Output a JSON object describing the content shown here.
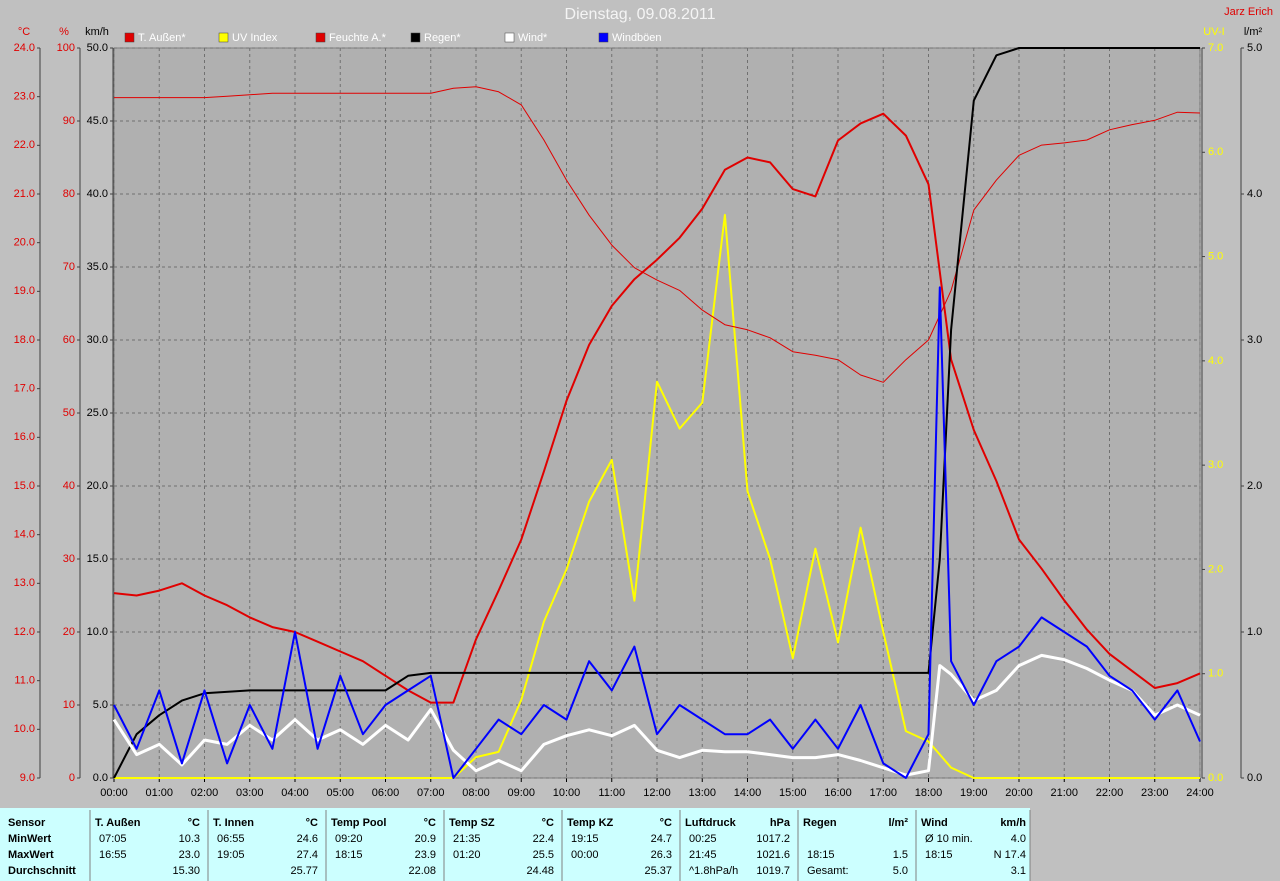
{
  "chart_data": {
    "type": "line",
    "title": "Dienstag, 09.08.2011",
    "author": "Jarz Erich",
    "xlim": [
      0,
      24
    ],
    "xticks": [
      {
        "value": 0,
        "label": "00:00"
      },
      {
        "value": 1,
        "label": "01:00"
      },
      {
        "value": 2,
        "label": "02:00"
      },
      {
        "value": 3,
        "label": "03:00"
      },
      {
        "value": 4,
        "label": "04:00"
      },
      {
        "value": 5,
        "label": "05:00"
      },
      {
        "value": 6,
        "label": "06:00"
      },
      {
        "value": 7,
        "label": "07:00"
      },
      {
        "value": 8,
        "label": "08:00"
      },
      {
        "value": 9,
        "label": "09:00"
      },
      {
        "value": 10,
        "label": "10:00"
      },
      {
        "value": 11,
        "label": "11:00"
      },
      {
        "value": 12,
        "label": "12:00"
      },
      {
        "value": 13,
        "label": "13:00"
      },
      {
        "value": 14,
        "label": "14:00"
      },
      {
        "value": 15,
        "label": "15:00"
      },
      {
        "value": 16,
        "label": "16:00"
      },
      {
        "value": 17,
        "label": "17:00"
      },
      {
        "value": 18,
        "label": "18:00"
      },
      {
        "value": 19,
        "label": "19:00"
      },
      {
        "value": 20,
        "label": "20:00"
      },
      {
        "value": 21,
        "label": "21:00"
      },
      {
        "value": 22,
        "label": "22:00"
      },
      {
        "value": 23,
        "label": "23:00"
      },
      {
        "value": 24,
        "label": "24:00"
      }
    ],
    "grid": true,
    "axes": [
      {
        "label": "°C",
        "side": "left",
        "color": "#e00000",
        "lim": [
          9,
          24
        ],
        "ticks": [
          {
            "value": 9,
            "label": "9.0"
          },
          {
            "value": 10,
            "label": "10.0"
          },
          {
            "value": 11,
            "label": "11.0"
          },
          {
            "value": 12,
            "label": "12.0"
          },
          {
            "value": 13,
            "label": "13.0"
          },
          {
            "value": 14,
            "label": "14.0"
          },
          {
            "value": 15,
            "label": "15.0"
          },
          {
            "value": 16,
            "label": "16.0"
          },
          {
            "value": 17,
            "label": "17.0"
          },
          {
            "value": 18,
            "label": "18.0"
          },
          {
            "value": 19,
            "label": "19.0"
          },
          {
            "value": 20,
            "label": "20.0"
          },
          {
            "value": 21,
            "label": "21.0"
          },
          {
            "value": 22,
            "label": "22.0"
          },
          {
            "value": 23,
            "label": "23.0"
          },
          {
            "value": 24,
            "label": "24.0"
          }
        ]
      },
      {
        "label": "%",
        "side": "left",
        "color": "#e00000",
        "lim": [
          0,
          100
        ],
        "ticks": [
          0,
          10,
          20,
          30,
          40,
          50,
          60,
          70,
          80,
          90,
          100
        ]
      },
      {
        "label": "km/h",
        "side": "left",
        "color": "#000000",
        "lim": [
          0,
          50
        ],
        "grid": true,
        "ticks": [
          {
            "value": 0,
            "label": "0.0"
          },
          {
            "value": 5,
            "label": "5.0"
          },
          {
            "value": 10,
            "label": "10.0"
          },
          {
            "value": 15,
            "label": "15.0"
          },
          {
            "value": 20,
            "label": "20.0"
          },
          {
            "value": 25,
            "label": "25.0"
          },
          {
            "value": 30,
            "label": "30.0"
          },
          {
            "value": 35,
            "label": "35.0"
          },
          {
            "value": 40,
            "label": "40.0"
          },
          {
            "value": 45,
            "label": "45.0"
          },
          {
            "value": 50,
            "label": "50.0"
          }
        ]
      },
      {
        "label": "UV-I",
        "side": "right",
        "color": "#ffff00",
        "lim": [
          0,
          7
        ],
        "ticks": [
          {
            "value": 0,
            "label": "0.0"
          },
          {
            "value": 1,
            "label": "1.0"
          },
          {
            "value": 2,
            "label": "2.0"
          },
          {
            "value": 3,
            "label": "3.0"
          },
          {
            "value": 4,
            "label": "4.0"
          },
          {
            "value": 5,
            "label": "5.0"
          },
          {
            "value": 6,
            "label": "6.0"
          },
          {
            "value": 7,
            "label": "7.0"
          }
        ]
      },
      {
        "label": "l/m²",
        "side": "right",
        "color": "#000000",
        "lim": [
          0,
          5
        ],
        "ticks": [
          {
            "value": 0,
            "label": "0.0"
          },
          {
            "value": 1,
            "label": "1.0"
          },
          {
            "value": 2,
            "label": "2.0"
          },
          {
            "value": 3,
            "label": "3.0"
          },
          {
            "value": 4,
            "label": "4.0"
          },
          {
            "value": 5,
            "label": "5.0"
          }
        ]
      }
    ],
    "series": [
      {
        "name": "T. Außen*",
        "color": "#e00000",
        "axis": "°C",
        "width": 2,
        "x": [
          0,
          0.5,
          1,
          1.5,
          2,
          2.5,
          3,
          3.5,
          4,
          4.5,
          5,
          5.5,
          6,
          6.5,
          7,
          7.5,
          8,
          8.5,
          9,
          9.5,
          10,
          10.5,
          11,
          11.5,
          12,
          12.5,
          13,
          13.5,
          14,
          14.5,
          15,
          15.5,
          16,
          16.5,
          17,
          17.5,
          18,
          18.5,
          19,
          19.5,
          20,
          20.5,
          21,
          21.5,
          22,
          22.5,
          23,
          23.5,
          24
        ],
        "values": [
          12.8,
          12.75,
          12.85,
          13.0,
          12.75,
          12.55,
          12.3,
          12.1,
          12.0,
          11.8,
          11.6,
          11.4,
          11.1,
          10.8,
          10.55,
          10.55,
          11.85,
          12.85,
          13.9,
          15.3,
          16.75,
          17.9,
          18.7,
          19.25,
          19.65,
          20.1,
          20.7,
          21.5,
          21.75,
          21.65,
          21.1,
          20.95,
          22.1,
          22.45,
          22.65,
          22.2,
          21.2,
          17.6,
          16.15,
          15.1,
          13.9,
          13.3,
          12.65,
          12.05,
          11.55,
          11.2,
          10.85,
          10.95,
          11.15
        ]
      },
      {
        "name": "UV Index",
        "color": "#ffff00",
        "axis": "UV-I",
        "width": 2,
        "x": [
          0,
          0.5,
          1,
          1.5,
          2,
          2.5,
          3,
          3.5,
          4,
          4.5,
          5,
          5.5,
          6,
          6.5,
          7,
          7.5,
          8,
          8.5,
          9,
          9.5,
          10,
          10.5,
          11,
          11.5,
          12,
          12.5,
          13,
          13.5,
          14,
          14.5,
          15,
          15.5,
          16,
          16.5,
          17,
          17.5,
          18,
          18.5,
          19,
          19.5,
          20,
          20.5,
          21,
          21.5,
          22,
          22.5,
          23,
          23.5,
          24
        ],
        "values": [
          0,
          0,
          0,
          0,
          0,
          0,
          0,
          0,
          0,
          0,
          0,
          0,
          0,
          0,
          0,
          0,
          0.2,
          0.25,
          0.75,
          1.5,
          2.0,
          2.65,
          3.05,
          1.7,
          3.8,
          3.35,
          3.6,
          5.4,
          2.75,
          2.1,
          1.15,
          2.2,
          1.3,
          2.4,
          1.4,
          0.45,
          0.35,
          0.1,
          0,
          0,
          0,
          0,
          0,
          0,
          0,
          0,
          0,
          0,
          0
        ]
      },
      {
        "name": "Feuchte A.*",
        "color": "#e00000",
        "axis": "%",
        "width": 1,
        "x": [
          0,
          0.5,
          1,
          1.5,
          2,
          2.5,
          3,
          3.5,
          4,
          4.5,
          5,
          5.5,
          6,
          6.5,
          7,
          7.5,
          8,
          8.5,
          9,
          9.5,
          10,
          10.5,
          11,
          11.5,
          12,
          12.5,
          13,
          13.5,
          14,
          14.5,
          15,
          15.5,
          16,
          16.5,
          17,
          17.5,
          18,
          18.5,
          19,
          19.5,
          20,
          20.5,
          21,
          21.5,
          22,
          22.5,
          23,
          23.5,
          24
        ],
        "values": [
          93.2,
          93.2,
          93.2,
          93.2,
          93.2,
          93.4,
          93.6,
          93.8,
          93.8,
          93.8,
          93.8,
          93.8,
          93.8,
          93.8,
          93.8,
          94.5,
          94.7,
          94.0,
          92.2,
          87.4,
          81.9,
          77.1,
          73.0,
          69.9,
          68.2,
          66.8,
          64.1,
          62.1,
          61.4,
          60.3,
          58.4,
          57.9,
          57.3,
          55.2,
          54.2,
          57.3,
          60.0,
          66.8,
          77.8,
          81.9,
          85.3,
          86.7,
          87.0,
          87.4,
          88.8,
          89.5,
          90.1,
          91.2,
          91.1
        ]
      },
      {
        "name": "Regen*",
        "color": "#000000",
        "axis": "l/m²",
        "width": 2,
        "x": [
          0,
          0.5,
          1,
          1.5,
          2,
          3,
          6,
          6.5,
          7,
          18,
          18.25,
          18.5,
          19,
          19.5,
          20,
          24
        ],
        "values": [
          0,
          0.3,
          0.43,
          0.53,
          0.58,
          0.6,
          0.6,
          0.7,
          0.72,
          0.72,
          1.5,
          3.07,
          4.64,
          4.95,
          5.0,
          5.0
        ]
      },
      {
        "name": "Wind*",
        "color": "#ffffff",
        "axis": "km/h",
        "width": 3,
        "x": [
          0,
          0.5,
          1,
          1.5,
          2,
          2.5,
          3,
          3.5,
          4,
          4.5,
          5,
          5.5,
          6,
          6.5,
          7,
          7.5,
          8,
          8.5,
          9,
          9.5,
          10,
          10.5,
          11,
          11.5,
          12,
          12.5,
          13,
          13.5,
          14,
          14.5,
          15,
          15.5,
          16,
          16.5,
          17,
          17.5,
          18,
          18.25,
          18.5,
          19,
          19.5,
          20,
          20.5,
          21,
          21.5,
          22,
          22.5,
          23,
          23.5,
          24
        ],
        "values": [
          4.0,
          1.6,
          2.3,
          0.9,
          2.6,
          2.3,
          3.6,
          2.6,
          4.0,
          2.6,
          3.3,
          2.3,
          3.6,
          2.6,
          4.7,
          1.9,
          0.5,
          1.2,
          0.5,
          2.3,
          2.9,
          3.3,
          2.9,
          3.6,
          1.9,
          1.4,
          1.9,
          1.8,
          1.8,
          1.6,
          1.4,
          1.4,
          1.6,
          1.2,
          0.7,
          0.2,
          0.5,
          7.7,
          7.1,
          5.3,
          6.0,
          7.7,
          8.4,
          8.1,
          7.5,
          6.7,
          6.0,
          4.3,
          5.0,
          4.3
        ]
      },
      {
        "name": "Windböen",
        "color": "#0000ff",
        "axis": "km/h",
        "width": 2,
        "x": [
          0,
          0.5,
          1,
          1.5,
          2,
          2.5,
          3,
          3.5,
          4,
          4.5,
          5,
          5.5,
          6,
          6.5,
          7,
          7.5,
          8,
          8.5,
          9,
          9.5,
          10,
          10.5,
          11,
          11.5,
          12,
          12.5,
          13,
          13.5,
          14,
          14.5,
          15,
          15.5,
          16,
          16.5,
          17,
          17.5,
          18,
          18.25,
          18.5,
          19,
          19.5,
          20,
          20.5,
          21,
          21.5,
          22,
          22.5,
          23,
          23.5,
          24
        ],
        "values": [
          5,
          2,
          6,
          1,
          6,
          1,
          5,
          2,
          10,
          2,
          7,
          3,
          5,
          6,
          7,
          0,
          2,
          4,
          3,
          5,
          4,
          8,
          6,
          9,
          3,
          5,
          4,
          3,
          3,
          4,
          2,
          4,
          2,
          5,
          1,
          0,
          3,
          33.6,
          8,
          5,
          8,
          9,
          11,
          10,
          9,
          7,
          6,
          4,
          6,
          2.5
        ]
      }
    ]
  },
  "table": {
    "row_labels": [
      "Sensor",
      "MinWert",
      "MaxWert",
      "Durchschnitt"
    ],
    "groups": [
      {
        "name": "T. Außen",
        "unit": "°C",
        "rows": [
          [
            "07:05",
            "10.3"
          ],
          [
            "16:55",
            "23.0"
          ],
          [
            null,
            "15.30"
          ]
        ]
      },
      {
        "name": "T. Innen",
        "unit": "°C",
        "rows": [
          [
            "06:55",
            "24.6"
          ],
          [
            "19:05",
            "27.4"
          ],
          [
            null,
            "25.77"
          ]
        ]
      },
      {
        "name": "Temp Pool",
        "unit": "°C",
        "rows": [
          [
            "09:20",
            "20.9"
          ],
          [
            "18:15",
            "23.9"
          ],
          [
            null,
            "22.08"
          ]
        ]
      },
      {
        "name": "Temp SZ",
        "unit": "°C",
        "rows": [
          [
            "21:35",
            "22.4"
          ],
          [
            "01:20",
            "25.5"
          ],
          [
            null,
            "24.48"
          ]
        ]
      },
      {
        "name": "Temp KZ",
        "unit": "°C",
        "rows": [
          [
            "19:15",
            "24.7"
          ],
          [
            "00:00",
            "26.3"
          ],
          [
            null,
            "25.37"
          ]
        ]
      },
      {
        "name": "Luftdruck",
        "unit": "hPa",
        "rows": [
          [
            "00:25",
            "1017.2"
          ],
          [
            "21:45",
            "1021.6"
          ],
          [
            "^1.8hPa/h",
            "1019.7"
          ]
        ]
      },
      {
        "name": "Regen",
        "unit": "l/m²",
        "rows": [
          [
            null,
            null
          ],
          [
            "18:15",
            "1.5"
          ],
          [
            "Gesamt:",
            "5.0"
          ]
        ]
      },
      {
        "name": "Wind",
        "unit": "km/h",
        "rows": [
          [
            "Ø 10 min.",
            "4.0"
          ],
          [
            "18:15",
            "N 17.4"
          ],
          [
            null,
            "3.1"
          ]
        ]
      }
    ]
  }
}
